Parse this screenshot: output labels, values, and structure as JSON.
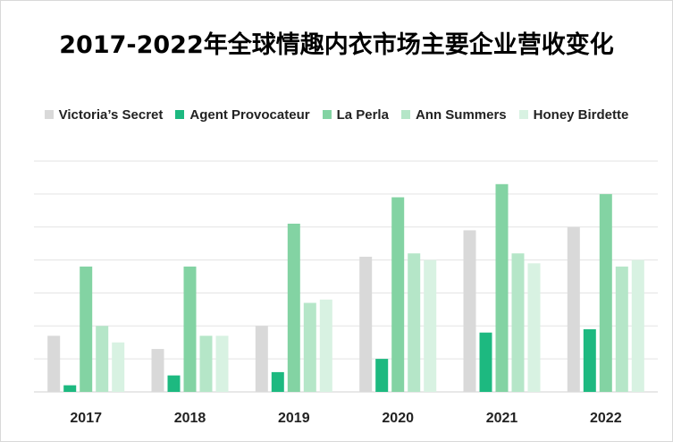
{
  "chart_data": {
    "type": "bar",
    "title": "2017-2022年全球情趣内衣市场主要企业营收变化",
    "categories": [
      "2017",
      "2018",
      "2019",
      "2020",
      "2021",
      "2022"
    ],
    "series": [
      {
        "name": "Victoria’s Secret",
        "color": "#d9d9d9",
        "values": [
          1.7,
          1.3,
          2.0,
          4.1,
          4.9,
          5.0
        ]
      },
      {
        "name": "Agent Provocateur",
        "color": "#1db980",
        "values": [
          0.2,
          0.5,
          0.6,
          1.0,
          1.8,
          1.9
        ]
      },
      {
        "name": "La Perla",
        "color": "#83d3a3",
        "values": [
          3.8,
          3.8,
          5.1,
          5.9,
          6.3,
          6.0
        ]
      },
      {
        "name": "Ann Summers",
        "color": "#b5e6c8",
        "values": [
          2.0,
          1.7,
          2.7,
          4.2,
          4.2,
          3.8
        ]
      },
      {
        "name": "Honey Birdette",
        "color": "#d8f2e2",
        "values": [
          1.5,
          1.7,
          2.8,
          4.0,
          3.9,
          4.0
        ]
      }
    ],
    "ylim": [
      0,
      7
    ],
    "grid": true,
    "legend": "top"
  }
}
